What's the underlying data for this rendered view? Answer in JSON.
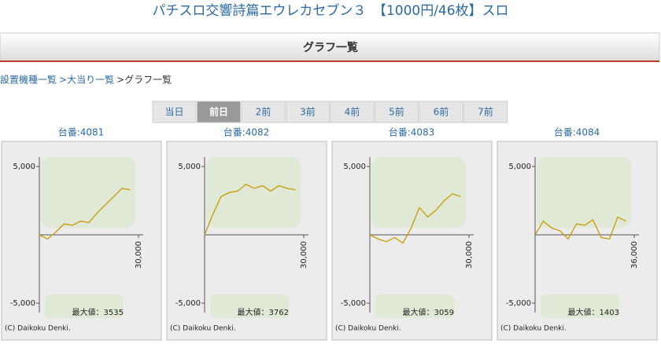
{
  "title": "パチスロ交響詩篇エウレカセブン３　【1000円/46枚】スロ",
  "header": "グラフ一覧",
  "breadcrumb": [
    "設置機種一覧",
    ">大当り一覧",
    ">グラフ一覧"
  ],
  "tabs": [
    {
      "label": "当日",
      "active": false
    },
    {
      "label": "前日",
      "active": true
    },
    {
      "label": "2前",
      "active": false
    },
    {
      "label": "3前",
      "active": false
    },
    {
      "label": "4前",
      "active": false
    },
    {
      "label": "5前",
      "active": false
    },
    {
      "label": "6前",
      "active": false
    },
    {
      "label": "7前",
      "active": false
    }
  ],
  "panels": [
    {
      "label": "台番:4081",
      "chart": {
        "type": "line",
        "color": "#c89b00",
        "x": [
          0,
          2500,
          5000,
          7500,
          10000,
          12500,
          15000,
          17500,
          20000,
          22500,
          25000,
          27500
        ],
        "values": [
          0,
          -300,
          200,
          800,
          700,
          1000,
          900,
          1600,
          2200,
          2800,
          3400,
          3300
        ],
        "xlim": [
          0,
          30000
        ],
        "ylim": [
          -5000,
          5000
        ],
        "xticks": [
          {
            "value": 30000,
            "label": "30,000"
          }
        ],
        "yticks": [
          {
            "value": 5000,
            "label": "5,000"
          },
          {
            "value": -5000,
            "label": "-5,000"
          }
        ],
        "max_label": "最大値：3535",
        "credit": "(C) Daikoku Denki."
      }
    },
    {
      "label": "台番:4082",
      "chart": {
        "type": "line",
        "color": "#c89b00",
        "x": [
          0,
          2500,
          5000,
          7500,
          10000,
          12500,
          15000,
          17500,
          20000,
          22500,
          25000,
          27500
        ],
        "values": [
          0,
          1500,
          2800,
          3100,
          3200,
          3700,
          3400,
          3600,
          3200,
          3600,
          3400,
          3300
        ],
        "xlim": [
          0,
          30000
        ],
        "ylim": [
          -5000,
          5000
        ],
        "xticks": [
          {
            "value": 30000,
            "label": "30,000"
          }
        ],
        "yticks": [
          {
            "value": 5000,
            "label": "5,000"
          },
          {
            "value": -5000,
            "label": "-5,000"
          }
        ],
        "max_label": "最大値：3762",
        "credit": "(C) Daikoku Denki."
      }
    },
    {
      "label": "台番:4083",
      "chart": {
        "type": "line",
        "color": "#c89b00",
        "x": [
          0,
          2500,
          5000,
          7500,
          10000,
          12500,
          15000,
          17500,
          20000,
          22500,
          25000,
          27500
        ],
        "values": [
          0,
          -300,
          -500,
          -200,
          -600,
          500,
          2000,
          1300,
          1800,
          2500,
          3000,
          2800
        ],
        "xlim": [
          0,
          30000
        ],
        "ylim": [
          -5000,
          5000
        ],
        "xticks": [
          {
            "value": 30000,
            "label": "30,000"
          }
        ],
        "yticks": [
          {
            "value": 5000,
            "label": "5,000"
          },
          {
            "value": -5000,
            "label": "-5,000"
          }
        ],
        "max_label": "最大値：3059",
        "credit": "(C) Daikoku Denki."
      }
    },
    {
      "label": "台番:4084",
      "chart": {
        "type": "line",
        "color": "#c89b00",
        "x": [
          0,
          3000,
          6000,
          9000,
          12000,
          15000,
          18000,
          21000,
          24000,
          27000,
          30000,
          33000
        ],
        "values": [
          0,
          1000,
          500,
          300,
          -300,
          800,
          700,
          1100,
          -200,
          -300,
          1300,
          1000
        ],
        "xlim": [
          0,
          36000
        ],
        "ylim": [
          -5000,
          5000
        ],
        "xticks": [
          {
            "value": 36000,
            "label": "36,000"
          }
        ],
        "yticks": [
          {
            "value": 5000,
            "label": "5,000"
          },
          {
            "value": -5000,
            "label": "-5,000"
          }
        ],
        "max_label": "最大値：1403",
        "credit": "(C) Daikoku Denki."
      }
    }
  ]
}
